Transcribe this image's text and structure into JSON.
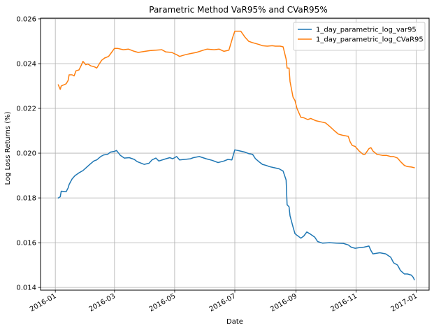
{
  "chart_data": {
    "type": "line",
    "title": "Parametric Method VaR95% and CVaR95%",
    "xlabel": "Date",
    "ylabel": "Log Loss Returns (%)",
    "x_ticks": [
      "2016-01",
      "2016-03",
      "2016-05",
      "2016-07",
      "2016-09",
      "2016-11",
      "2017-01"
    ],
    "y_ticks": [
      "0.014",
      "0.016",
      "0.018",
      "0.020",
      "0.022",
      "0.024",
      "0.026"
    ],
    "xlim": [
      "2015-12-17",
      "2017-01-14"
    ],
    "ylim": [
      0.01388,
      0.02603
    ],
    "grid": true,
    "legend_position": "top-right",
    "series": [
      {
        "name": "1_day_parametric_log_var95",
        "color": "#1f77b4",
        "points": [
          [
            "2016-01-04",
            0.018
          ],
          [
            "2016-01-06",
            0.01805
          ],
          [
            "2016-01-07",
            0.0183
          ],
          [
            "2016-01-12",
            0.01828
          ],
          [
            "2016-01-14",
            0.01845
          ],
          [
            "2016-01-15",
            0.0186
          ],
          [
            "2016-01-18",
            0.01885
          ],
          [
            "2016-01-21",
            0.019
          ],
          [
            "2016-01-25",
            0.01912
          ],
          [
            "2016-01-29",
            0.01922
          ],
          [
            "2016-02-02",
            0.01938
          ],
          [
            "2016-02-05",
            0.0195
          ],
          [
            "2016-02-09",
            0.01965
          ],
          [
            "2016-02-12",
            0.0197
          ],
          [
            "2016-02-16",
            0.01985
          ],
          [
            "2016-02-19",
            0.01992
          ],
          [
            "2016-02-23",
            0.01995
          ],
          [
            "2016-02-26",
            0.02005
          ],
          [
            "2016-03-01",
            0.02008
          ],
          [
            "2016-03-03",
            0.02012
          ],
          [
            "2016-03-07",
            0.0199
          ],
          [
            "2016-03-11",
            0.01978
          ],
          [
            "2016-03-16",
            0.0198
          ],
          [
            "2016-03-21",
            0.01972
          ],
          [
            "2016-03-24",
            0.01962
          ],
          [
            "2016-03-31",
            0.0195
          ],
          [
            "2016-04-05",
            0.01955
          ],
          [
            "2016-04-08",
            0.0197
          ],
          [
            "2016-04-12",
            0.01978
          ],
          [
            "2016-04-15",
            0.01965
          ],
          [
            "2016-04-20",
            0.01972
          ],
          [
            "2016-04-26",
            0.0198
          ],
          [
            "2016-04-29",
            0.01975
          ],
          [
            "2016-05-03",
            0.01985
          ],
          [
            "2016-05-06",
            0.0197
          ],
          [
            "2016-05-11",
            0.01972
          ],
          [
            "2016-05-17",
            0.01975
          ],
          [
            "2016-05-20",
            0.0198
          ],
          [
            "2016-05-26",
            0.01985
          ],
          [
            "2016-06-02",
            0.01975
          ],
          [
            "2016-06-08",
            0.01968
          ],
          [
            "2016-06-14",
            0.01958
          ],
          [
            "2016-06-20",
            0.01965
          ],
          [
            "2016-06-24",
            0.01972
          ],
          [
            "2016-06-28",
            0.0197
          ],
          [
            "2016-07-01",
            0.02015
          ],
          [
            "2016-07-06",
            0.0201
          ],
          [
            "2016-07-11",
            0.02005
          ],
          [
            "2016-07-15",
            0.01998
          ],
          [
            "2016-07-19",
            0.01995
          ],
          [
            "2016-07-22",
            0.01975
          ],
          [
            "2016-07-26",
            0.0196
          ],
          [
            "2016-07-29",
            0.0195
          ],
          [
            "2016-08-02",
            0.01945
          ],
          [
            "2016-08-05",
            0.0194
          ],
          [
            "2016-08-10",
            0.01935
          ],
          [
            "2016-08-15",
            0.0193
          ],
          [
            "2016-08-17",
            0.01925
          ],
          [
            "2016-08-19",
            0.0192
          ],
          [
            "2016-08-22",
            0.0188
          ],
          [
            "2016-08-23",
            0.0177
          ],
          [
            "2016-08-25",
            0.0176
          ],
          [
            "2016-08-26",
            0.0172
          ],
          [
            "2016-08-29",
            0.0167
          ],
          [
            "2016-08-31",
            0.0164
          ],
          [
            "2016-09-06",
            0.0162
          ],
          [
            "2016-09-09",
            0.0163
          ],
          [
            "2016-09-12",
            0.01648
          ],
          [
            "2016-09-15",
            0.0164
          ],
          [
            "2016-09-20",
            0.01625
          ],
          [
            "2016-09-23",
            0.01605
          ],
          [
            "2016-09-28",
            0.01598
          ],
          [
            "2016-10-05",
            0.016
          ],
          [
            "2016-10-12",
            0.01598
          ],
          [
            "2016-10-19",
            0.01597
          ],
          [
            "2016-10-24",
            0.0159
          ],
          [
            "2016-10-27",
            0.0158
          ],
          [
            "2016-10-31",
            0.01575
          ],
          [
            "2016-11-04",
            0.01578
          ],
          [
            "2016-11-09",
            0.0158
          ],
          [
            "2016-11-14",
            0.01585
          ],
          [
            "2016-11-16",
            0.01565
          ],
          [
            "2016-11-18",
            0.0155
          ],
          [
            "2016-11-25",
            0.01555
          ],
          [
            "2016-12-01",
            0.0155
          ],
          [
            "2016-12-06",
            0.01535
          ],
          [
            "2016-12-09",
            0.0151
          ],
          [
            "2016-12-13",
            0.015
          ],
          [
            "2016-12-16",
            0.01475
          ],
          [
            "2016-12-20",
            0.0146
          ],
          [
            "2016-12-23",
            0.0146
          ],
          [
            "2016-12-27",
            0.01455
          ],
          [
            "2016-12-29",
            0.01445
          ],
          [
            "2016-12-30",
            0.01435
          ]
        ]
      },
      {
        "name": "1_day_parametric_log_CVaR95",
        "color": "#ff7f0e",
        "points": [
          [
            "2016-01-04",
            0.02305
          ],
          [
            "2016-01-06",
            0.02285
          ],
          [
            "2016-01-07",
            0.023
          ],
          [
            "2016-01-12",
            0.0231
          ],
          [
            "2016-01-14",
            0.02325
          ],
          [
            "2016-01-15",
            0.0235
          ],
          [
            "2016-01-18",
            0.0235
          ],
          [
            "2016-01-20",
            0.02345
          ],
          [
            "2016-01-22",
            0.02368
          ],
          [
            "2016-01-25",
            0.02372
          ],
          [
            "2016-01-27",
            0.0239
          ],
          [
            "2016-01-29",
            0.0241
          ],
          [
            "2016-02-01",
            0.02395
          ],
          [
            "2016-02-03",
            0.02398
          ],
          [
            "2016-02-06",
            0.0239
          ],
          [
            "2016-02-10",
            0.02385
          ],
          [
            "2016-02-12",
            0.0238
          ],
          [
            "2016-02-15",
            0.02402
          ],
          [
            "2016-02-17",
            0.02415
          ],
          [
            "2016-02-20",
            0.02425
          ],
          [
            "2016-02-24",
            0.02432
          ],
          [
            "2016-02-27",
            0.0245
          ],
          [
            "2016-03-01",
            0.02468
          ],
          [
            "2016-03-04",
            0.02468
          ],
          [
            "2016-03-10",
            0.02462
          ],
          [
            "2016-03-15",
            0.02465
          ],
          [
            "2016-03-21",
            0.02455
          ],
          [
            "2016-03-25",
            0.0245
          ],
          [
            "2016-04-01",
            0.02455
          ],
          [
            "2016-04-06",
            0.02458
          ],
          [
            "2016-04-12",
            0.0246
          ],
          [
            "2016-04-18",
            0.02462
          ],
          [
            "2016-04-22",
            0.02452
          ],
          [
            "2016-04-28",
            0.0245
          ],
          [
            "2016-05-03",
            0.0244
          ],
          [
            "2016-05-06",
            0.02432
          ],
          [
            "2016-05-12",
            0.0244
          ],
          [
            "2016-05-17",
            0.02445
          ],
          [
            "2016-05-23",
            0.0245
          ],
          [
            "2016-05-30",
            0.0246
          ],
          [
            "2016-06-03",
            0.02465
          ],
          [
            "2016-06-10",
            0.02462
          ],
          [
            "2016-06-15",
            0.02465
          ],
          [
            "2016-06-20",
            0.02455
          ],
          [
            "2016-06-25",
            0.0246
          ],
          [
            "2016-06-29",
            0.0252
          ],
          [
            "2016-07-01",
            0.02545
          ],
          [
            "2016-07-07",
            0.02545
          ],
          [
            "2016-07-11",
            0.0252
          ],
          [
            "2016-07-15",
            0.025
          ],
          [
            "2016-07-18",
            0.02495
          ],
          [
            "2016-07-22",
            0.0249
          ],
          [
            "2016-07-26",
            0.02485
          ],
          [
            "2016-07-29",
            0.0248
          ],
          [
            "2016-08-03",
            0.02478
          ],
          [
            "2016-08-08",
            0.0248
          ],
          [
            "2016-08-11",
            0.02478
          ],
          [
            "2016-08-16",
            0.02478
          ],
          [
            "2016-08-19",
            0.02475
          ],
          [
            "2016-08-22",
            0.0242
          ],
          [
            "2016-08-23",
            0.0238
          ],
          [
            "2016-08-25",
            0.0238
          ],
          [
            "2016-08-26",
            0.0232
          ],
          [
            "2016-08-29",
            0.0225
          ],
          [
            "2016-08-31",
            0.02235
          ],
          [
            "2016-09-02",
            0.022
          ],
          [
            "2016-09-06",
            0.0216
          ],
          [
            "2016-09-09",
            0.02158
          ],
          [
            "2016-09-13",
            0.0215
          ],
          [
            "2016-09-16",
            0.02155
          ],
          [
            "2016-09-21",
            0.02145
          ],
          [
            "2016-09-26",
            0.0214
          ],
          [
            "2016-10-01",
            0.02135
          ],
          [
            "2016-10-05",
            0.0212
          ],
          [
            "2016-10-10",
            0.021
          ],
          [
            "2016-10-14",
            0.02085
          ],
          [
            "2016-10-18",
            0.0208
          ],
          [
            "2016-10-24",
            0.02075
          ],
          [
            "2016-10-26",
            0.0205
          ],
          [
            "2016-10-28",
            0.02035
          ],
          [
            "2016-10-31",
            0.0203
          ],
          [
            "2016-11-04",
            0.0201
          ],
          [
            "2016-11-08",
            0.01995
          ],
          [
            "2016-11-10",
            0.01995
          ],
          [
            "2016-11-14",
            0.0202
          ],
          [
            "2016-11-16",
            0.02025
          ],
          [
            "2016-11-18",
            0.0201
          ],
          [
            "2016-11-22",
            0.01995
          ],
          [
            "2016-11-28",
            0.0199
          ],
          [
            "2016-12-02",
            0.0199
          ],
          [
            "2016-12-06",
            0.01985
          ],
          [
            "2016-12-09",
            0.01985
          ],
          [
            "2016-12-13",
            0.01978
          ],
          [
            "2016-12-16",
            0.01962
          ],
          [
            "2016-12-20",
            0.01945
          ],
          [
            "2016-12-23",
            0.0194
          ],
          [
            "2016-12-27",
            0.01938
          ],
          [
            "2016-12-30",
            0.01935
          ]
        ]
      }
    ]
  }
}
